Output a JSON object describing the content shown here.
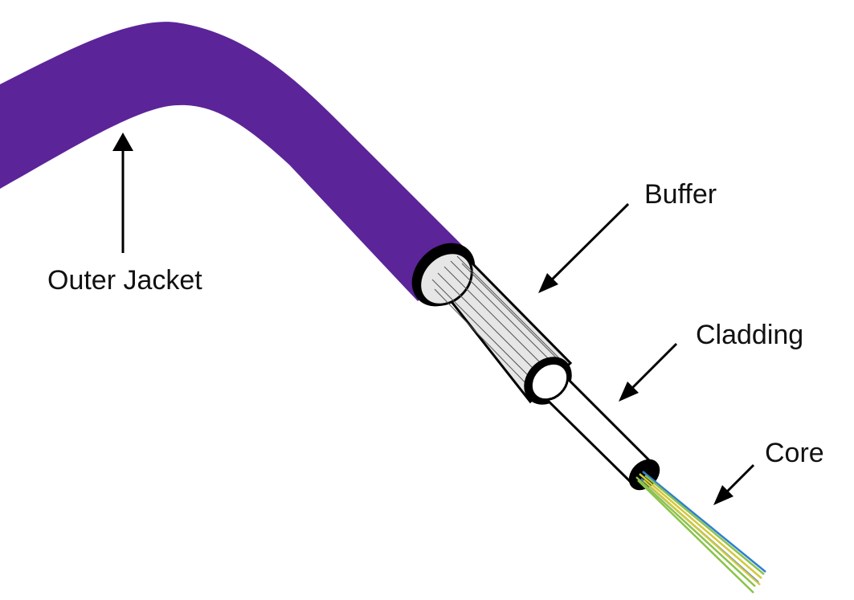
{
  "labels": {
    "outer_jacket": "Outer Jacket",
    "buffer": "Buffer",
    "cladding": "Cladding",
    "core": "Core"
  },
  "colors": {
    "jacket": "#5c2499",
    "buffer_fill": "#e6e6e6",
    "cladding_fill": "#ffffff",
    "outline": "#000000",
    "fiber_green": "#8bc34a",
    "fiber_yellow": "#d4c93a",
    "fiber_blue": "#2f7fd1"
  }
}
